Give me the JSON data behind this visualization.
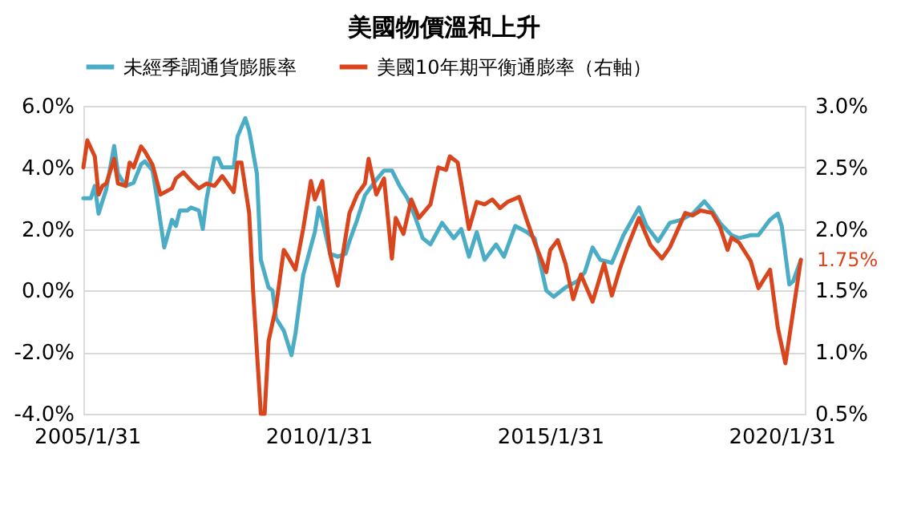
{
  "chart_data": {
    "type": "line",
    "title": "美國物價溫和上升",
    "xlim": [
      "2005-01",
      "2020-08"
    ],
    "xticks": [
      {
        "value": "2005-01-31",
        "label": "2005/1/31"
      },
      {
        "value": "2010-01-31",
        "label": "2010/1/31"
      },
      {
        "value": "2015-01-31",
        "label": "2015/1/31"
      },
      {
        "value": "2020-01-31",
        "label": "2020/1/31"
      }
    ],
    "ylim": [
      -4,
      6
    ],
    "yticks": [
      {
        "value": -4,
        "label": "-4.0%"
      },
      {
        "value": -2,
        "label": "-2.0%"
      },
      {
        "value": 0,
        "label": "0.0%"
      },
      {
        "value": 2,
        "label": "2.0%"
      },
      {
        "value": 4,
        "label": "4.0%"
      },
      {
        "value": 6,
        "label": "6.0%"
      }
    ],
    "y2lim": [
      0.5,
      3.0
    ],
    "y2ticks": [
      {
        "value": 0.5,
        "label": "0.5%"
      },
      {
        "value": 1.0,
        "label": "1.0%"
      },
      {
        "value": 1.5,
        "label": "1.5%"
      },
      {
        "value": 2.0,
        "label": "2.0%"
      },
      {
        "value": 2.5,
        "label": "2.5%"
      },
      {
        "value": 3.0,
        "label": "3.0%"
      }
    ],
    "grid": "y",
    "legend": "top",
    "series": [
      {
        "name": "未經季調通貨膨脹率",
        "color": "#4bacc6",
        "x": [
          "2005-01",
          "2005-03",
          "2005-04",
          "2005-05",
          "2005-07",
          "2005-09",
          "2005-10",
          "2005-12",
          "2006-02",
          "2006-04",
          "2006-05",
          "2006-07",
          "2006-08",
          "2006-10",
          "2006-12",
          "2007-01",
          "2007-02",
          "2007-04",
          "2007-05",
          "2007-07",
          "2007-08",
          "2007-09",
          "2007-11",
          "2007-12",
          "2008-01",
          "2008-04",
          "2008-05",
          "2008-07",
          "2008-08",
          "2008-10",
          "2008-11",
          "2009-01",
          "2009-02",
          "2009-03",
          "2009-05",
          "2009-07",
          "2009-08",
          "2009-10",
          "2010-01",
          "2010-02",
          "2010-03",
          "2010-05",
          "2010-07",
          "2010-09",
          "2010-10",
          "2010-12",
          "2011-02",
          "2011-05",
          "2011-07",
          "2011-09",
          "2011-11",
          "2012-01",
          "2012-03",
          "2012-05",
          "2012-07",
          "2012-10",
          "2013-01",
          "2013-03",
          "2013-05",
          "2013-07",
          "2013-09",
          "2013-12",
          "2014-02",
          "2014-05",
          "2014-08",
          "2014-10",
          "2015-01",
          "2015-03",
          "2015-06",
          "2015-09",
          "2015-11",
          "2016-01",
          "2016-03",
          "2016-06",
          "2016-09",
          "2017-01",
          "2017-03",
          "2017-06",
          "2017-09",
          "2017-12",
          "2018-03",
          "2018-06",
          "2018-08",
          "2018-10",
          "2019-01",
          "2019-03",
          "2019-06",
          "2019-08",
          "2019-11",
          "2020-01",
          "2020-02",
          "2020-04",
          "2020-05",
          "2020-07"
        ],
        "values": [
          3.0,
          3.0,
          3.4,
          2.5,
          3.3,
          4.7,
          3.8,
          3.4,
          3.5,
          4.1,
          4.2,
          3.9,
          3.1,
          1.4,
          2.3,
          2.1,
          2.6,
          2.6,
          2.7,
          2.6,
          2.0,
          3.0,
          4.3,
          4.3,
          4.0,
          4.0,
          5.0,
          5.6,
          5.2,
          3.8,
          1.0,
          0.1,
          0.0,
          -0.9,
          -1.3,
          -2.1,
          -1.4,
          0.5,
          1.9,
          2.7,
          2.3,
          1.2,
          1.1,
          1.2,
          1.6,
          2.3,
          3.1,
          3.6,
          3.9,
          3.9,
          3.4,
          3.0,
          2.4,
          1.7,
          1.5,
          2.2,
          1.7,
          2.0,
          1.1,
          1.9,
          1.0,
          1.5,
          1.1,
          2.1,
          1.9,
          1.7,
          0.0,
          -0.2,
          0.1,
          0.3,
          0.6,
          1.4,
          1.0,
          0.9,
          1.8,
          2.7,
          2.1,
          1.6,
          2.2,
          2.3,
          2.5,
          2.9,
          2.6,
          2.2,
          1.8,
          1.7,
          1.8,
          1.8,
          2.3,
          2.5,
          2.1,
          0.2,
          0.3,
          1.0
        ]
      },
      {
        "name": "美國10年期平衡通膨率（右軸）",
        "color": "#d9461e",
        "axis": "y2",
        "x": [
          "2005-01",
          "2005-02",
          "2005-04",
          "2005-05",
          "2005-06",
          "2005-07",
          "2005-09",
          "2005-10",
          "2005-12",
          "2006-01",
          "2006-02",
          "2006-04",
          "2006-05",
          "2006-07",
          "2006-09",
          "2006-12",
          "2007-01",
          "2007-03",
          "2007-05",
          "2007-07",
          "2007-09",
          "2007-11",
          "2008-01",
          "2008-04",
          "2008-05",
          "2008-06",
          "2008-08",
          "2008-09",
          "2008-11",
          "2008-12",
          "2009-01",
          "2009-03",
          "2009-05",
          "2009-06",
          "2009-08",
          "2009-10",
          "2009-12",
          "2010-01",
          "2010-03",
          "2010-05",
          "2010-07",
          "2010-10",
          "2010-12",
          "2011-02",
          "2011-03",
          "2011-05",
          "2011-07",
          "2011-09",
          "2011-10",
          "2011-12",
          "2012-02",
          "2012-04",
          "2012-07",
          "2012-09",
          "2012-11",
          "2012-12",
          "2013-02",
          "2013-05",
          "2013-07",
          "2013-09",
          "2013-11",
          "2014-01",
          "2014-03",
          "2014-06",
          "2014-08",
          "2014-10",
          "2015-01",
          "2015-02",
          "2015-04",
          "2015-06",
          "2015-08",
          "2015-10",
          "2016-01",
          "2016-04",
          "2016-06",
          "2016-08",
          "2016-10",
          "2017-01",
          "2017-04",
          "2017-07",
          "2017-09",
          "2018-01",
          "2018-03",
          "2018-05",
          "2018-08",
          "2018-10",
          "2018-12",
          "2019-01",
          "2019-03",
          "2019-06",
          "2019-08",
          "2019-11",
          "2020-01",
          "2020-03",
          "2020-05",
          "2020-07"
        ],
        "values": [
          2.5,
          2.72,
          2.59,
          2.28,
          2.35,
          2.37,
          2.57,
          2.37,
          2.35,
          2.54,
          2.5,
          2.67,
          2.63,
          2.52,
          2.28,
          2.33,
          2.41,
          2.46,
          2.39,
          2.33,
          2.37,
          2.35,
          2.43,
          2.3,
          2.54,
          2.54,
          2.13,
          1.5,
          0.5,
          0.5,
          1.09,
          1.37,
          1.83,
          1.78,
          1.67,
          2.0,
          2.39,
          2.24,
          2.39,
          1.8,
          1.54,
          2.13,
          2.28,
          2.37,
          2.57,
          2.28,
          2.41,
          1.76,
          2.09,
          1.96,
          2.24,
          2.09,
          2.2,
          2.5,
          2.48,
          2.59,
          2.54,
          2.0,
          2.22,
          2.2,
          2.24,
          2.17,
          2.22,
          2.26,
          2.07,
          1.89,
          1.65,
          1.83,
          1.91,
          1.72,
          1.43,
          1.63,
          1.41,
          1.72,
          1.46,
          1.67,
          1.85,
          2.09,
          1.87,
          1.76,
          1.85,
          2.13,
          2.11,
          2.15,
          2.13,
          2.02,
          1.83,
          1.93,
          1.89,
          1.74,
          1.52,
          1.67,
          1.2,
          0.91,
          1.33,
          1.75
        ]
      }
    ],
    "annotations": [
      "1.75%"
    ]
  }
}
